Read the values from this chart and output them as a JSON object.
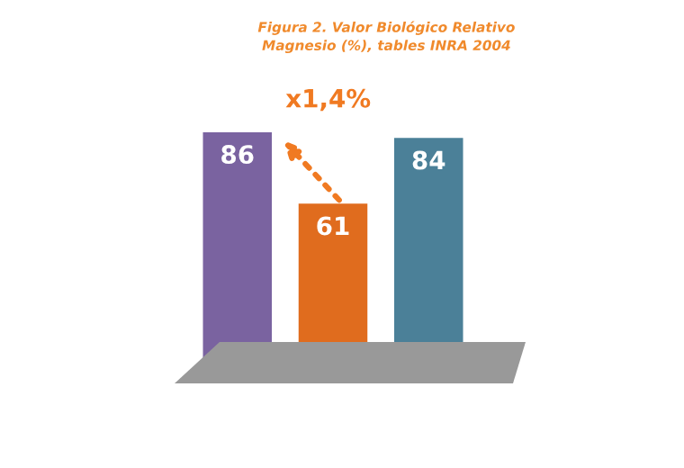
{
  "chart_data": {
    "type": "bar",
    "title": "Figura 2. Valor Biológico Relativo",
    "subtitle": "Magnesio (%), tables INRA 2004",
    "categories": [
      null,
      null,
      null
    ],
    "values": [
      86,
      61,
      84
    ],
    "colors": [
      "#7a63a0",
      "#e06c1e",
      "#4b8098"
    ],
    "data_labels": true,
    "annotations": [
      "x1,4%"
    ]
  }
}
